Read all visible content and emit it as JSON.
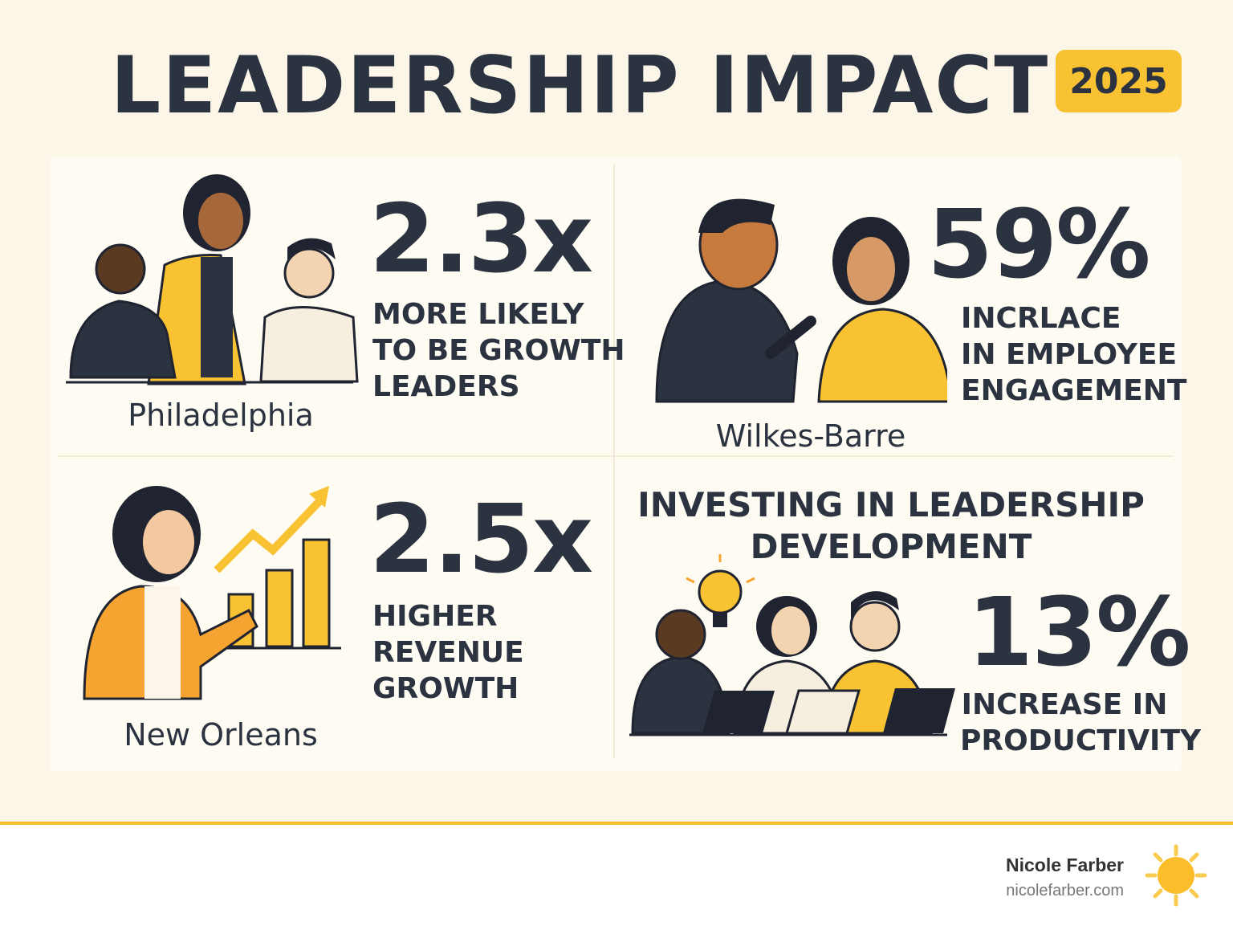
{
  "header": {
    "title": "LEADERSHIP IMPACT",
    "year": "2025"
  },
  "stats": [
    {
      "value": "2.3x",
      "caption": [
        "MORE LIKELY",
        "TO BE GROWTH",
        "LEADERS"
      ],
      "city": "Philadelphia"
    },
    {
      "value": "59%",
      "caption": [
        "INCRLACE",
        "IN EMPLOYEE",
        "ENGAGEMENT"
      ],
      "city": "Wilkes-Barre"
    },
    {
      "value": "2.5x",
      "caption": [
        "HIGHER",
        "REVENUE",
        "GROWTH"
      ],
      "city": "New Orleans"
    },
    {
      "heading": [
        "INVESTING IN LEADERSHIP",
        "DEVELOPMENT"
      ],
      "value": "13%",
      "caption": [
        "INCREASE IN",
        "PRODUCTIVITY"
      ]
    }
  ],
  "footer": {
    "author": "Nicole Farber",
    "website": "nicolefarber.com",
    "logo_icon": "sun-icon"
  },
  "colors": {
    "accent": "#f8c233",
    "text": "#2b3240",
    "background": "#fcf6e8",
    "orange": "#f5a431"
  }
}
